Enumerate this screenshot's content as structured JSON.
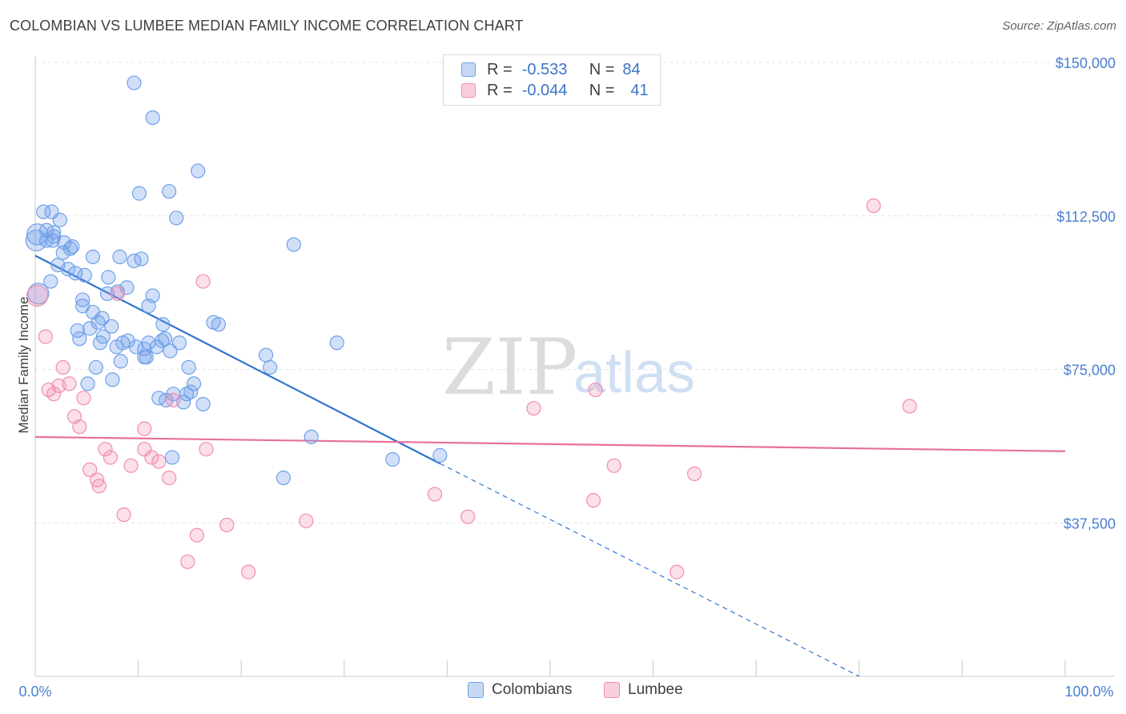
{
  "title": "COLOMBIAN VS LUMBEE MEDIAN FAMILY INCOME CORRELATION CHART",
  "source": "Source: ZipAtlas.com",
  "watermark": {
    "zip": "ZIP",
    "atlas": "atlas"
  },
  "legend": {
    "rows": [
      {
        "r_label": "R =",
        "r_value": "-0.533",
        "n_label": "N =",
        "n_value": "84",
        "color": "#6fa0e8"
      },
      {
        "r_label": "R =",
        "r_value": "-0.044",
        "n_label": "N =",
        "n_value": "41",
        "color": "#f08db0"
      }
    ]
  },
  "bottom_legend": {
    "colombians": "Colombians",
    "lumbee": "Lumbee"
  },
  "colors": {
    "blue": "#6fa0e8",
    "pink": "#f08db0",
    "blue_line": "#2f74d0",
    "pink_line": "#e8709a",
    "tick_text": "#4a7fd0"
  },
  "chart_data": {
    "type": "scatter",
    "title": "COLOMBIAN VS LUMBEE MEDIAN FAMILY INCOME CORRELATION CHART",
    "xlabel": "",
    "ylabel": "Median Family Income",
    "x_tick_labels": [
      "0.0%",
      "100.0%"
    ],
    "y_tick_labels": [
      "$37,500",
      "$75,000",
      "$112,500",
      "$150,000"
    ],
    "y_ticks": [
      37500,
      75000,
      112500,
      150000
    ],
    "xlim": [
      0,
      100
    ],
    "ylim": [
      0,
      154000
    ],
    "grid": true,
    "series": [
      {
        "name": "Colombians",
        "color": "#6fa0e8",
        "points": [
          [
            0.1,
            106500
          ],
          [
            0.2,
            108000
          ],
          [
            0.3,
            93500
          ],
          [
            0.8,
            113500
          ],
          [
            1.1,
            109000
          ],
          [
            1.1,
            106500
          ],
          [
            1.5,
            96500
          ],
          [
            1.6,
            113500
          ],
          [
            1.7,
            106500
          ],
          [
            1.8,
            108500
          ],
          [
            1.8,
            107500
          ],
          [
            2.2,
            100500
          ],
          [
            2.4,
            111500
          ],
          [
            2.7,
            103500
          ],
          [
            2.8,
            106000
          ],
          [
            3.2,
            99500
          ],
          [
            3.4,
            104500
          ],
          [
            3.6,
            105000
          ],
          [
            3.9,
            98500
          ],
          [
            4.1,
            84500
          ],
          [
            4.3,
            82500
          ],
          [
            4.6,
            92000
          ],
          [
            4.6,
            90500
          ],
          [
            4.8,
            98000
          ],
          [
            5.1,
            71500
          ],
          [
            5.3,
            85000
          ],
          [
            5.6,
            102500
          ],
          [
            5.6,
            89000
          ],
          [
            5.9,
            75500
          ],
          [
            6.1,
            86500
          ],
          [
            6.3,
            81500
          ],
          [
            6.5,
            87500
          ],
          [
            6.6,
            83000
          ],
          [
            7.0,
            93500
          ],
          [
            7.1,
            97500
          ],
          [
            7.4,
            85500
          ],
          [
            7.5,
            72500
          ],
          [
            7.9,
            80500
          ],
          [
            8.0,
            94000
          ],
          [
            8.2,
            102500
          ],
          [
            8.3,
            77000
          ],
          [
            8.5,
            81500
          ],
          [
            8.9,
            95000
          ],
          [
            9.0,
            82000
          ],
          [
            9.6,
            101500
          ],
          [
            9.6,
            145000
          ],
          [
            9.8,
            80500
          ],
          [
            10.1,
            118000
          ],
          [
            10.3,
            102000
          ],
          [
            10.6,
            80000
          ],
          [
            10.6,
            78000
          ],
          [
            10.8,
            78000
          ],
          [
            11.0,
            90500
          ],
          [
            11.0,
            81500
          ],
          [
            11.4,
            136500
          ],
          [
            11.4,
            93000
          ],
          [
            11.8,
            80500
          ],
          [
            12.0,
            68000
          ],
          [
            12.3,
            82000
          ],
          [
            12.4,
            86000
          ],
          [
            12.6,
            82500
          ],
          [
            12.7,
            67500
          ],
          [
            13.0,
            118500
          ],
          [
            13.1,
            79500
          ],
          [
            13.3,
            53500
          ],
          [
            13.4,
            69000
          ],
          [
            13.7,
            112000
          ],
          [
            14.0,
            81500
          ],
          [
            14.4,
            67000
          ],
          [
            14.7,
            69000
          ],
          [
            14.9,
            75500
          ],
          [
            15.1,
            69500
          ],
          [
            15.4,
            71500
          ],
          [
            15.8,
            123500
          ],
          [
            16.3,
            66500
          ],
          [
            17.3,
            86500
          ],
          [
            17.8,
            86000
          ],
          [
            22.4,
            78500
          ],
          [
            22.8,
            75500
          ],
          [
            24.1,
            48500
          ],
          [
            25.1,
            105500
          ],
          [
            26.8,
            58500
          ],
          [
            29.3,
            81500
          ],
          [
            34.7,
            53000
          ],
          [
            39.3,
            54000
          ]
        ]
      },
      {
        "name": "Lumbee",
        "color": "#f08db0",
        "points": [
          [
            0.2,
            93000
          ],
          [
            1.0,
            83000
          ],
          [
            1.3,
            70000
          ],
          [
            1.8,
            69000
          ],
          [
            2.3,
            71000
          ],
          [
            2.7,
            75500
          ],
          [
            3.3,
            71500
          ],
          [
            3.8,
            63500
          ],
          [
            4.3,
            61000
          ],
          [
            4.7,
            68000
          ],
          [
            5.3,
            50500
          ],
          [
            6.0,
            48000
          ],
          [
            6.2,
            46500
          ],
          [
            6.8,
            55500
          ],
          [
            7.3,
            53500
          ],
          [
            8.0,
            93500
          ],
          [
            8.6,
            39500
          ],
          [
            9.3,
            51500
          ],
          [
            10.6,
            60500
          ],
          [
            10.6,
            55500
          ],
          [
            11.3,
            53500
          ],
          [
            12.0,
            52500
          ],
          [
            13.0,
            48500
          ],
          [
            13.4,
            67500
          ],
          [
            14.8,
            28000
          ],
          [
            15.7,
            34500
          ],
          [
            16.3,
            96500
          ],
          [
            16.6,
            55500
          ],
          [
            18.6,
            37000
          ],
          [
            20.7,
            25500
          ],
          [
            26.3,
            38000
          ],
          [
            38.8,
            44500
          ],
          [
            42.0,
            39000
          ],
          [
            48.4,
            65500
          ],
          [
            54.2,
            43000
          ],
          [
            54.4,
            70000
          ],
          [
            56.2,
            51500
          ],
          [
            62.3,
            25500
          ],
          [
            64.0,
            49500
          ],
          [
            81.4,
            115000
          ],
          [
            84.9,
            66000
          ]
        ]
      }
    ],
    "trend_lines": [
      {
        "series": "Colombians",
        "solid_from": [
          0,
          102800
        ],
        "solid_to": [
          39.3,
          52000
        ],
        "dashed_to": [
          80.0,
          0
        ]
      },
      {
        "series": "Lumbee",
        "from": [
          0,
          58500
        ],
        "to": [
          100,
          55000
        ]
      }
    ]
  }
}
